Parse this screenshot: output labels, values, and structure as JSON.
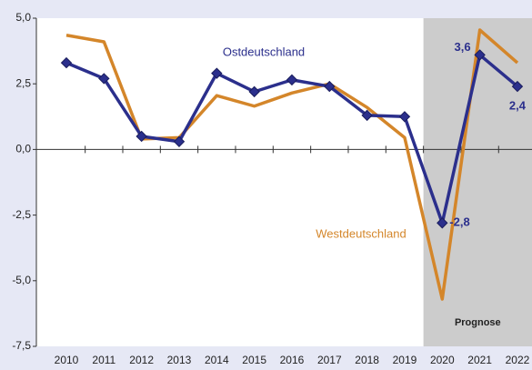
{
  "chart_data": {
    "type": "line",
    "categories": [
      "2010",
      "2011",
      "2012",
      "2013",
      "2014",
      "2015",
      "2016",
      "2017",
      "2018",
      "2019",
      "2020",
      "2021",
      "2022"
    ],
    "series": [
      {
        "name": "Ostdeutschland",
        "color": "#2b2f8c",
        "marker": "diamond",
        "values": [
          3.3,
          2.7,
          0.5,
          0.3,
          2.9,
          2.2,
          2.65,
          2.4,
          1.3,
          1.25,
          -2.8,
          3.6,
          2.4
        ],
        "value_labels": [
          null,
          null,
          null,
          null,
          null,
          null,
          null,
          null,
          null,
          null,
          "-2,8",
          "3,6",
          "2,4"
        ]
      },
      {
        "name": "Westdeutschland",
        "color": "#d4862a",
        "values": [
          4.35,
          4.1,
          0.4,
          0.45,
          2.05,
          1.65,
          2.15,
          2.5,
          1.6,
          0.45,
          -5.7,
          4.55,
          3.3
        ]
      }
    ],
    "ylim": [
      -7.5,
      5.0
    ],
    "yticks": [
      {
        "value": 5.0,
        "label": "5,0"
      },
      {
        "value": 2.5,
        "label": "2,5"
      },
      {
        "value": 0,
        "label": "0,0"
      },
      {
        "value": -2.5,
        "label": "-2,5"
      },
      {
        "value": -5.0,
        "label": "-5,0"
      },
      {
        "value": -7.5,
        "label": "-7,5"
      }
    ],
    "forecast": {
      "label": "Prognose",
      "start": "2020"
    }
  }
}
